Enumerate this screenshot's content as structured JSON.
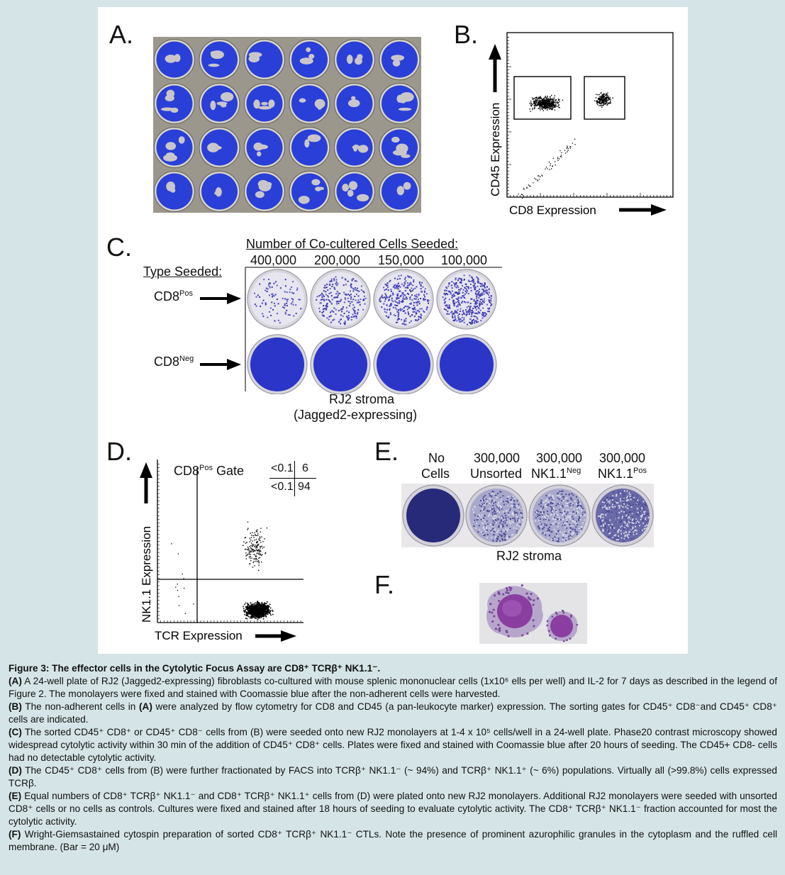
{
  "figure": {
    "panels": {
      "A": {
        "letter": "A."
      },
      "B": {
        "letter": "B.",
        "y_axis_label": "CD45 Expression",
        "x_axis_label": "CD8 Expression"
      },
      "C": {
        "letter": "C.",
        "header": "Number of Co-cultered Cells Seeded:",
        "columns": [
          "400,000",
          "200,000",
          "150,000",
          "100,000"
        ],
        "type_label": "Type Seeded:",
        "row_labels": [
          {
            "base": "CD8",
            "sup": "Pos"
          },
          {
            "base": "CD8",
            "sup": "Neg"
          }
        ],
        "footer_line1": "RJ2 stroma",
        "footer_line2": "(Jagged2-expressing)"
      },
      "D": {
        "letter": "D.",
        "gate_base": "CD8",
        "gate_sup": "Pos",
        "gate_suffix": " Gate",
        "quadrant_values": {
          "top_left": "<0.1",
          "top_right": "6",
          "bottom_left": "<0.1",
          "bottom_right": "94"
        },
        "y_axis_label": "NK1.1 Expression",
        "x_axis_label": "TCR Expression"
      },
      "E": {
        "letter": "E.",
        "columns": [
          {
            "line1": "No",
            "line2": "Cells",
            "sup": ""
          },
          {
            "line1": "300,000",
            "line2": "Unsorted",
            "sup": ""
          },
          {
            "line1": "300,000",
            "line2": "NK1.1",
            "sup": "Neg"
          },
          {
            "line1": "300,000",
            "line2": "NK1.1",
            "sup": "Pos"
          }
        ],
        "footer": "RJ2 stroma"
      },
      "F": {
        "letter": "F."
      }
    }
  },
  "caption": {
    "title": "Figure 3: The effector cells in the Cytolytic Focus Assay are CD8⁺ TCRβ⁺ NK1.1⁻.",
    "A": {
      "tag": "(A)",
      "text": " A 24-well plate of RJ2 (Jagged2-expressing) fibroblasts co-cultured with mouse splenic mononuclear cells (1x10⁶ ells per well) and IL-2 for 7 days as described in the legend of Figure 2. The monolayers were fixed and stained with Coomassie blue after the non-adherent cells were harvested."
    },
    "B": {
      "tag": "(B)",
      "text": " The non-adherent cells in ",
      "tag2": "(A)",
      "text2": " were analyzed by flow cytometry for CD8 and CD45 (a pan-leukocyte marker) expression. The sorting gates for CD45⁺ CD8⁻and CD45⁺ CD8⁺ cells are indicated."
    },
    "C": {
      "tag": "(C)",
      "text": " The sorted CD45⁺ CD8⁺ or CD45⁺ CD8⁻ cells from (B) were seeded onto new RJ2 monolayers at 1-4 x 10⁵ cells/well in a 24-well plate. Phase20 contrast microscopy showed widespread cytolytic activity within 30 min of the addition of CD45⁺ CD8⁺ cells. Plates were fixed and stained with Coomassie blue after 20 hours of seeding. The CD45+ CD8- cells had no detectable cytolytic activity."
    },
    "D": {
      "tag": "(D)",
      "text": " The CD45⁺ CD8⁺ cells from (B) were further fractionated by FACS into TCRβ⁺ NK1.1⁻ (~ 94%) and TCRβ⁺ NK1.1⁺ (~ 6%) populations. Virtually all (>99.8%) cells expressed TCRβ."
    },
    "E": {
      "tag": "(E)",
      "text": " Equal numbers of CD8⁺ TCRβ⁺ NK1.1⁻ and CD8⁺ TCRβ⁺ NK1.1⁺ cells from (D) were plated onto new RJ2 monolayers. Additional RJ2 monolayers were seeded with unsorted CD8⁺ cells or no cells as controls. Cultures were fixed and stained after 18 hours of seeding to evaluate cytolytic activity. The CD8⁺ TCRβ⁺ NK1.1⁻ fraction accounted for most the cytolytic activity."
    },
    "F": {
      "tag": "(F)",
      "text": " Wright-Giemsastained cytospin preparation of sorted CD8⁺ TCRβ⁺ NK1.1⁻ CTLs. Note the presence of prominent azurophilic granules in the cytoplasm and the ruffled cell membrane. (Bar = 20 μM)"
    }
  }
}
